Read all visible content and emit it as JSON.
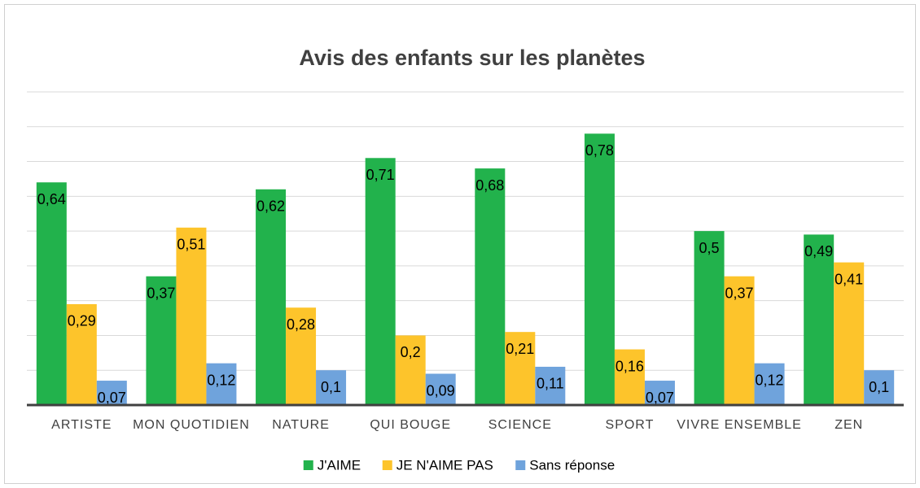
{
  "chart_data": {
    "type": "bar",
    "title": "Avis des enfants sur les planètes",
    "categories": [
      "ARTISTE",
      "MON QUOTIDIEN",
      "NATURE",
      "QUI BOUGE",
      "SCIENCE",
      "SPORT",
      "VIVRE ENSEMBLE",
      "ZEN"
    ],
    "series": [
      {
        "name": "J'AIME",
        "color": "#22b24c",
        "values": [
          0.64,
          0.37,
          0.62,
          0.71,
          0.68,
          0.78,
          0.5,
          0.49
        ],
        "value_labels": [
          "0,64",
          "0,37",
          "0,62",
          "0,71",
          "0,68",
          "0,78",
          "0,5",
          "0,49"
        ]
      },
      {
        "name": "JE N'AIME PAS",
        "color": "#fdc42b",
        "values": [
          0.29,
          0.51,
          0.28,
          0.2,
          0.21,
          0.16,
          0.37,
          0.41
        ],
        "value_labels": [
          "0,29",
          "0,51",
          "0,28",
          "0,2",
          "0,21",
          "0,16",
          "0,37",
          "0,41"
        ]
      },
      {
        "name": "Sans réponse",
        "color": "#6fa3dc",
        "values": [
          0.07,
          0.12,
          0.1,
          0.09,
          0.11,
          0.07,
          0.12,
          0.1
        ],
        "value_labels": [
          "0,07",
          "0,12",
          "0,1",
          "0,09",
          "0,11",
          "0,07",
          "0,12",
          "0,1"
        ]
      }
    ],
    "ylim": [
      0,
      0.9
    ],
    "yticks": [
      0,
      0.1,
      0.2,
      0.3,
      0.4,
      0.5,
      0.6,
      0.7,
      0.8,
      0.9
    ],
    "grid": true,
    "legend": "bottom"
  }
}
